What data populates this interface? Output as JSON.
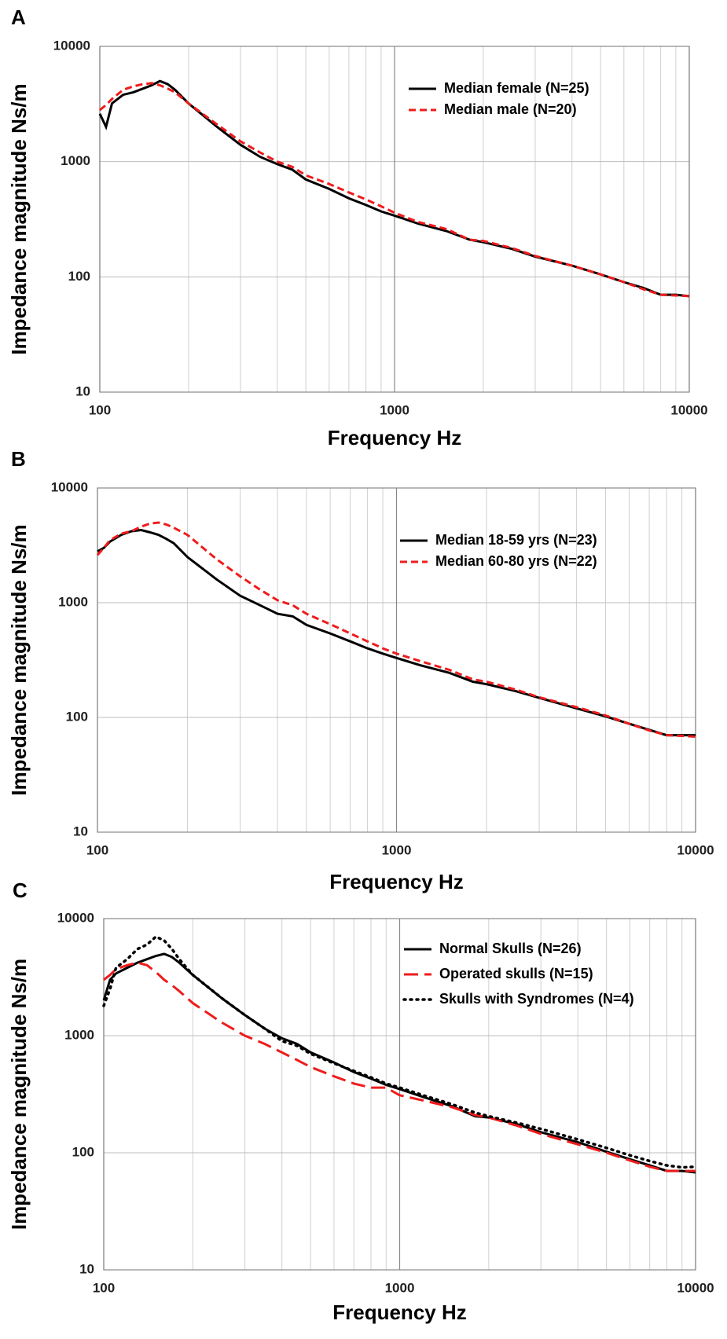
{
  "chart_data": [
    {
      "type": "line",
      "label": "A",
      "xlabel": "Frequency Hz",
      "ylabel": "Impedance magnitude Ns/m",
      "xscale": "log",
      "yscale": "log",
      "grid": true,
      "xlim": [
        100,
        10000
      ],
      "ylim": [
        10,
        10000
      ],
      "xticks": [
        100,
        1000,
        10000
      ],
      "yticks": [
        10,
        100,
        1000,
        10000
      ],
      "legend": "upper right",
      "x": [
        100,
        105,
        110,
        120,
        130,
        140,
        150,
        160,
        170,
        180,
        200,
        250,
        300,
        350,
        400,
        450,
        500,
        600,
        700,
        800,
        900,
        1000,
        1200,
        1500,
        1800,
        2000,
        2500,
        3000,
        4000,
        5000,
        6000,
        7000,
        8000,
        9000,
        10000
      ],
      "series": [
        {
          "name": "Median female (N=25)",
          "color": "#000000",
          "dash": "solid",
          "values": [
            2600,
            2000,
            3200,
            3800,
            4000,
            4300,
            4600,
            5000,
            4700,
            4200,
            3200,
            2000,
            1400,
            1100,
            950,
            850,
            700,
            580,
            480,
            420,
            370,
            340,
            290,
            250,
            210,
            200,
            175,
            150,
            125,
            105,
            90,
            80,
            70,
            70,
            68
          ]
        },
        {
          "name": "Median male (N=20)",
          "color": "#ee1c1c",
          "dash": "dashed",
          "values": [
            2800,
            3100,
            3500,
            4200,
            4500,
            4700,
            4800,
            4600,
            4300,
            4000,
            3200,
            2100,
            1500,
            1200,
            1000,
            900,
            760,
            640,
            540,
            470,
            410,
            360,
            300,
            260,
            210,
            205,
            178,
            152,
            125,
            105,
            90,
            78,
            70,
            69,
            68
          ]
        }
      ]
    },
    {
      "type": "line",
      "label": "B",
      "xlabel": "Frequency Hz",
      "ylabel": "Impedance magnitude Ns/m",
      "xscale": "log",
      "yscale": "log",
      "grid": true,
      "xlim": [
        100,
        10000
      ],
      "ylim": [
        10,
        10000
      ],
      "xticks": [
        100,
        1000,
        10000
      ],
      "yticks": [
        10,
        100,
        1000,
        10000
      ],
      "legend": "upper right",
      "x": [
        100,
        105,
        110,
        120,
        130,
        140,
        150,
        160,
        170,
        180,
        200,
        250,
        300,
        350,
        400,
        450,
        500,
        600,
        700,
        800,
        900,
        1000,
        1200,
        1500,
        1800,
        2000,
        2500,
        3000,
        4000,
        5000,
        6000,
        7000,
        8000,
        9000,
        10000
      ],
      "series": [
        {
          "name": "Median 18-59 yrs (N=23)",
          "color": "#000000",
          "dash": "solid",
          "values": [
            2800,
            3000,
            3400,
            3900,
            4200,
            4300,
            4100,
            3900,
            3600,
            3300,
            2500,
            1600,
            1150,
            950,
            800,
            760,
            640,
            540,
            460,
            400,
            360,
            330,
            285,
            245,
            205,
            195,
            170,
            148,
            120,
            102,
            88,
            78,
            70,
            70,
            70
          ]
        },
        {
          "name": "Median 60-80 yrs (N=22)",
          "color": "#ee1c1c",
          "dash": "dashed",
          "values": [
            2600,
            3000,
            3500,
            4000,
            4200,
            4600,
            4900,
            5000,
            4800,
            4500,
            3900,
            2400,
            1700,
            1300,
            1050,
            950,
            800,
            650,
            540,
            460,
            400,
            360,
            310,
            260,
            215,
            205,
            175,
            150,
            123,
            104,
            88,
            77,
            70,
            69,
            68
          ]
        }
      ]
    },
    {
      "type": "line",
      "label": "C",
      "xlabel": "Frequency Hz",
      "ylabel": "Impedance magnitude Ns/m",
      "xscale": "log",
      "yscale": "log",
      "grid": true,
      "xlim": [
        100,
        10000
      ],
      "ylim": [
        10,
        10000
      ],
      "xticks": [
        100,
        1000,
        10000
      ],
      "yticks": [
        10,
        100,
        1000,
        10000
      ],
      "legend": "upper right",
      "x": [
        100,
        105,
        110,
        120,
        130,
        140,
        150,
        160,
        170,
        180,
        200,
        250,
        300,
        350,
        400,
        450,
        500,
        600,
        700,
        800,
        900,
        1000,
        1200,
        1500,
        1800,
        2000,
        2500,
        3000,
        4000,
        5000,
        6000,
        7000,
        8000,
        9000,
        10000
      ],
      "series": [
        {
          "name": "Normal Skulls (N=26)",
          "color": "#000000",
          "dash": "solid",
          "values": [
            2000,
            3000,
            3400,
            3800,
            4200,
            4500,
            4800,
            5000,
            4700,
            4200,
            3300,
            2100,
            1500,
            1150,
            950,
            850,
            720,
            590,
            490,
            430,
            380,
            350,
            300,
            250,
            205,
            200,
            175,
            150,
            123,
            102,
            88,
            78,
            70,
            70,
            68
          ]
        },
        {
          "name": "Operated skulls (N=15)",
          "color": "#ee1c1c",
          "dash": "longdash",
          "values": [
            3000,
            3300,
            3700,
            4000,
            4200,
            4000,
            3500,
            3000,
            2700,
            2400,
            1900,
            1300,
            1000,
            850,
            720,
            620,
            540,
            450,
            390,
            360,
            360,
            310,
            280,
            245,
            210,
            200,
            170,
            145,
            118,
            100,
            86,
            76,
            70,
            70,
            70
          ]
        },
        {
          "name": "Skulls with Syndromes (N=4)",
          "color": "#000000",
          "dash": "dotted",
          "values": [
            1800,
            2500,
            3800,
            4500,
            5500,
            6000,
            7000,
            6500,
            5500,
            4500,
            3300,
            2100,
            1500,
            1150,
            900,
            820,
            700,
            580,
            500,
            440,
            390,
            360,
            310,
            260,
            220,
            205,
            180,
            160,
            130,
            110,
            95,
            85,
            78,
            75,
            76
          ]
        }
      ]
    }
  ]
}
